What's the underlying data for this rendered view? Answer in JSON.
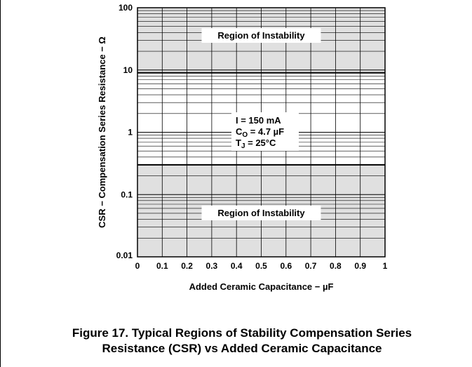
{
  "chart_data": {
    "type": "area",
    "x_axis": {
      "label": "Added Ceramic Capacitance − µF",
      "range": [
        0,
        1
      ],
      "ticks": [
        0,
        0.1,
        0.2,
        0.3,
        0.4,
        0.5,
        0.6,
        0.7,
        0.8,
        0.9,
        1
      ],
      "tick_labels": [
        "0",
        "0.1",
        "0.2",
        "0.3",
        "0.4",
        "0.5",
        "0.6",
        "0.7",
        "0.8",
        "0.9",
        "1"
      ],
      "scale": "linear"
    },
    "y_axis": {
      "label": "CSR − Compensation Series Resistance − Ω",
      "range": [
        0.01,
        100
      ],
      "ticks": [
        0.01,
        0.1,
        1,
        10,
        100
      ],
      "tick_labels": [
        "0.01",
        "0.1",
        "1",
        "10",
        "100"
      ],
      "scale": "log"
    },
    "grid": true,
    "regions": [
      {
        "label": "Region of Instability",
        "y_range": [
          9,
          100
        ],
        "color": "#e0e0e0"
      },
      {
        "label": "Region of Instability",
        "y_range": [
          0.01,
          0.3
        ],
        "color": "#e0e0e0"
      }
    ],
    "boundaries": [
      {
        "x": [
          0,
          1
        ],
        "y": [
          9,
          9
        ]
      },
      {
        "x": [
          0,
          1
        ],
        "y": [
          0.3,
          0.3
        ]
      }
    ],
    "conditions": {
      "line1": "I = 150 mA",
      "line2_main": "C",
      "line2_sub": "O",
      "line2_rest": " = 4.7 µF",
      "line3_main": "T",
      "line3_sub": "J",
      "line3_rest": " = 25°C"
    }
  },
  "caption": {
    "line1": "Figure 17. Typical Regions of Stability Compensation Series",
    "line2": "Resistance (CSR) vs Added Ceramic Capacitance"
  }
}
